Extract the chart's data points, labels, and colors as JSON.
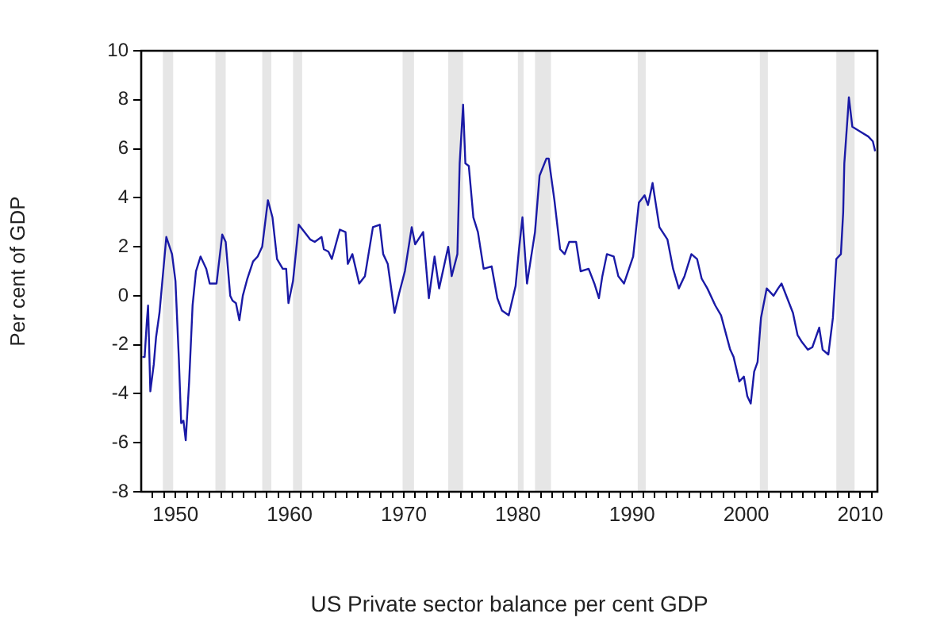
{
  "chart_data": {
    "type": "line",
    "xlabel": "US Private sector balance per cent GDP",
    "ylabel": "Per cent of GDP",
    "x": [
      1947.1,
      1947.3,
      1947.5,
      1947.6,
      1947.8,
      1948.1,
      1948.3,
      1948.6,
      1949.2,
      1949.7,
      1950.0,
      1950.3,
      1950.5,
      1950.7,
      1950.9,
      1951.2,
      1951.5,
      1951.8,
      1952.2,
      1952.7,
      1953.0,
      1953.6,
      1954.1,
      1954.4,
      1954.8,
      1955.0,
      1955.3,
      1955.6,
      1955.9,
      1956.3,
      1956.8,
      1957.2,
      1957.6,
      1958.1,
      1958.5,
      1958.9,
      1959.4,
      1959.7,
      1959.9,
      1960.3,
      1960.8,
      1961.3,
      1961.8,
      1962.2,
      1962.8,
      1963.0,
      1963.4,
      1963.7,
      1964.4,
      1964.9,
      1965.1,
      1965.5,
      1966.1,
      1966.6,
      1967.3,
      1967.9,
      1968.2,
      1968.6,
      1969.2,
      1969.6,
      1970.1,
      1970.7,
      1971.0,
      1971.7,
      1972.2,
      1972.7,
      1973.1,
      1973.9,
      1974.2,
      1974.7,
      1974.9,
      1975.2,
      1975.4,
      1975.7,
      1976.1,
      1976.5,
      1977.0,
      1977.7,
      1978.2,
      1978.6,
      1979.2,
      1979.8,
      1980.1,
      1980.4,
      1980.8,
      1981.5,
      1981.9,
      1982.5,
      1982.7,
      1983.2,
      1983.7,
      1984.1,
      1984.5,
      1985.1,
      1985.5,
      1986.2,
      1986.7,
      1987.1,
      1987.4,
      1987.8,
      1988.4,
      1988.8,
      1989.3,
      1990.1,
      1990.6,
      1991.1,
      1991.4,
      1991.8,
      1992.4,
      1993.1,
      1993.6,
      1994.1,
      1994.6,
      1995.2,
      1995.7,
      1996.1,
      1996.6,
      1997.3,
      1997.8,
      1998.6,
      1998.9,
      1999.4,
      1999.8,
      2000.1,
      2000.4,
      2000.7,
      2001.0,
      2001.3,
      2001.8,
      2002.4,
      2002.8,
      2003.1,
      2003.6,
      2004.1,
      2004.5,
      2004.9,
      2005.4,
      2005.8,
      2006.4,
      2006.7,
      2007.2,
      2007.6,
      2007.9,
      2008.3,
      2008.5,
      2008.6,
      2008.9,
      2009.0,
      2009.3,
      2010.0,
      2010.7,
      2011.1,
      2011.3
    ],
    "series": [
      {
        "color": "#1a1aa6",
        "values": [
          -2.5,
          -2.5,
          -1.0,
          -0.4,
          -3.9,
          -2.8,
          -1.7,
          -0.7,
          2.4,
          1.7,
          0.6,
          -2.6,
          -5.2,
          -5.1,
          -5.9,
          -3.5,
          -0.4,
          1.0,
          1.6,
          1.1,
          0.5,
          0.5,
          2.5,
          2.2,
          0.0,
          -0.2,
          -0.3,
          -1.0,
          0.0,
          0.7,
          1.4,
          1.6,
          2.0,
          3.9,
          3.2,
          1.5,
          1.1,
          1.1,
          -0.3,
          0.6,
          2.9,
          2.6,
          2.3,
          2.2,
          2.4,
          1.9,
          1.8,
          1.5,
          2.7,
          2.6,
          1.3,
          1.7,
          0.5,
          0.8,
          2.8,
          2.9,
          1.7,
          1.3,
          -0.7,
          0.1,
          1.0,
          2.8,
          2.1,
          2.6,
          -0.1,
          1.6,
          0.3,
          2.0,
          0.8,
          1.7,
          5.4,
          7.8,
          5.4,
          5.3,
          3.2,
          2.6,
          1.1,
          1.2,
          -0.1,
          -0.6,
          -0.8,
          0.4,
          1.9,
          3.2,
          0.5,
          2.6,
          4.9,
          5.6,
          5.6,
          3.9,
          1.9,
          1.7,
          2.2,
          2.2,
          1.0,
          1.1,
          0.5,
          -0.1,
          0.8,
          1.7,
          1.6,
          0.8,
          0.5,
          1.6,
          3.8,
          4.1,
          3.7,
          4.6,
          2.8,
          2.3,
          1.1,
          0.3,
          0.8,
          1.7,
          1.5,
          0.7,
          0.3,
          -0.4,
          -0.8,
          -2.2,
          -2.5,
          -3.5,
          -3.3,
          -4.1,
          -4.4,
          -3.1,
          -2.7,
          -0.9,
          0.3,
          0.0,
          0.3,
          0.5,
          -0.1,
          -0.7,
          -1.6,
          -1.9,
          -2.2,
          -2.1,
          -1.3,
          -2.2,
          -2.4,
          -0.9,
          1.5,
          1.7,
          3.4,
          5.4,
          7.4,
          8.1,
          6.9,
          6.7,
          6.5,
          6.3,
          5.9
        ]
      }
    ],
    "xlim": [
      1947,
      2011.5
    ],
    "xticks": [
      {
        "value": 1948,
        "label": null
      },
      {
        "value": 1949,
        "label": null
      },
      1950,
      {
        "value": 1951,
        "label": null
      },
      {
        "value": 1952,
        "label": null
      },
      {
        "value": 1953,
        "label": null
      },
      {
        "value": 1954,
        "label": null
      },
      {
        "value": 1955,
        "label": null
      },
      {
        "value": 1956,
        "label": null
      },
      {
        "value": 1957,
        "label": null
      },
      {
        "value": 1958,
        "label": null
      },
      {
        "value": 1959,
        "label": null
      },
      1960,
      {
        "value": 1961,
        "label": null
      },
      {
        "value": 1962,
        "label": null
      },
      {
        "value": 1963,
        "label": null
      },
      {
        "value": 1964,
        "label": null
      },
      {
        "value": 1965,
        "label": null
      },
      {
        "value": 1966,
        "label": null
      },
      {
        "value": 1967,
        "label": null
      },
      {
        "value": 1968,
        "label": null
      },
      {
        "value": 1969,
        "label": null
      },
      1970,
      {
        "value": 1971,
        "label": null
      },
      {
        "value": 1972,
        "label": null
      },
      {
        "value": 1973,
        "label": null
      },
      {
        "value": 1974,
        "label": null
      },
      {
        "value": 1975,
        "label": null
      },
      {
        "value": 1976,
        "label": null
      },
      {
        "value": 1977,
        "label": null
      },
      {
        "value": 1978,
        "label": null
      },
      {
        "value": 1979,
        "label": null
      },
      1980,
      {
        "value": 1981,
        "label": null
      },
      {
        "value": 1982,
        "label": null
      },
      {
        "value": 1983,
        "label": null
      },
      {
        "value": 1984,
        "label": null
      },
      {
        "value": 1985,
        "label": null
      },
      {
        "value": 1986,
        "label": null
      },
      {
        "value": 1987,
        "label": null
      },
      {
        "value": 1988,
        "label": null
      },
      {
        "value": 1989,
        "label": null
      },
      1990,
      {
        "value": 1991,
        "label": null
      },
      {
        "value": 1992,
        "label": null
      },
      {
        "value": 1993,
        "label": null
      },
      {
        "value": 1994,
        "label": null
      },
      {
        "value": 1995,
        "label": null
      },
      {
        "value": 1996,
        "label": null
      },
      {
        "value": 1997,
        "label": null
      },
      {
        "value": 1998,
        "label": null
      },
      {
        "value": 1999,
        "label": null
      },
      2000,
      {
        "value": 2001,
        "label": null
      },
      {
        "value": 2002,
        "label": null
      },
      {
        "value": 2003,
        "label": null
      },
      {
        "value": 2004,
        "label": null
      },
      {
        "value": 2005,
        "label": null
      },
      {
        "value": 2006,
        "label": null
      },
      {
        "value": 2007,
        "label": null
      },
      {
        "value": 2008,
        "label": null
      },
      {
        "value": 2009,
        "label": null
      },
      2010,
      {
        "value": 2011,
        "label": null
      }
    ],
    "ylim": [
      -8,
      10
    ],
    "yticks": [
      -8,
      -6,
      -4,
      -2,
      0,
      2,
      4,
      6,
      8,
      10
    ],
    "bands": [
      {
        "axis": "x",
        "from": 1948.9,
        "to": 1949.8,
        "color": "#e6e6e6"
      },
      {
        "axis": "x",
        "from": 1953.5,
        "to": 1954.4,
        "color": "#e6e6e6"
      },
      {
        "axis": "x",
        "from": 1957.6,
        "to": 1958.4,
        "color": "#e6e6e6"
      },
      {
        "axis": "x",
        "from": 1960.3,
        "to": 1961.1,
        "color": "#e6e6e6"
      },
      {
        "axis": "x",
        "from": 1969.9,
        "to": 1970.9,
        "color": "#e6e6e6"
      },
      {
        "axis": "x",
        "from": 1973.9,
        "to": 1975.2,
        "color": "#e6e6e6"
      },
      {
        "axis": "x",
        "from": 1980.0,
        "to": 1980.5,
        "color": "#e6e6e6"
      },
      {
        "axis": "x",
        "from": 1981.5,
        "to": 1982.9,
        "color": "#e6e6e6"
      },
      {
        "axis": "x",
        "from": 1990.5,
        "to": 1991.2,
        "color": "#e6e6e6"
      },
      {
        "axis": "x",
        "from": 2001.2,
        "to": 2001.9,
        "color": "#e6e6e6"
      },
      {
        "axis": "x",
        "from": 2007.9,
        "to": 2009.5,
        "color": "#e6e6e6"
      }
    ],
    "grid": false,
    "legend": false,
    "marker": "none",
    "line_style": "solid"
  }
}
